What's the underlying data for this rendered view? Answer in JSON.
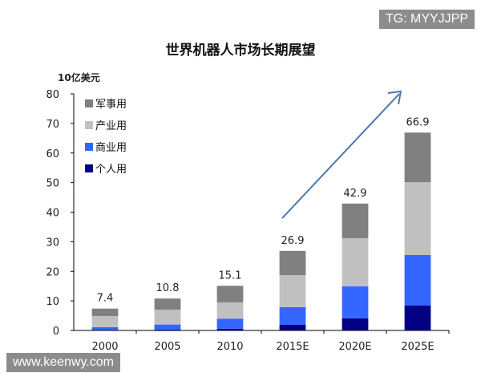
{
  "watermark_top": "TG: MYYJJPP",
  "watermark_bottom": "www.keenwy.com",
  "chart_data": {
    "type": "bar",
    "stacked": true,
    "title": "世界机器人市场长期展望",
    "ylabel": "10亿美元",
    "xlabel": "",
    "ylim": [
      0,
      80
    ],
    "yticks": [
      0,
      10,
      20,
      30,
      40,
      50,
      60,
      70,
      80
    ],
    "grid": false,
    "legend_position": "top-left",
    "categories": [
      "2000",
      "2005",
      "2010",
      "2015E",
      "2020E",
      "2025E"
    ],
    "totals": [
      "7.4",
      "10.8",
      "15.1",
      "26.9",
      "42.9",
      "66.9"
    ],
    "series": [
      {
        "name": "个人用",
        "color": "#000080",
        "values": [
          0.2,
          0.3,
          0.6,
          1.9,
          4.1,
          8.4
        ]
      },
      {
        "name": "商业用",
        "color": "#3366ff",
        "values": [
          0.9,
          1.7,
          3.4,
          6.0,
          10.8,
          17.1
        ]
      },
      {
        "name": "产业用",
        "color": "#c0c0c0",
        "values": [
          3.8,
          5.0,
          5.5,
          10.8,
          16.3,
          24.6
        ]
      },
      {
        "name": "军事用",
        "color": "#808080",
        "values": [
          2.5,
          3.8,
          5.6,
          8.2,
          11.7,
          16.8
        ]
      }
    ],
    "legend_order": [
      "军事用",
      "产业用",
      "商业用",
      "个人用"
    ],
    "annotation": "upward trend arrow"
  }
}
